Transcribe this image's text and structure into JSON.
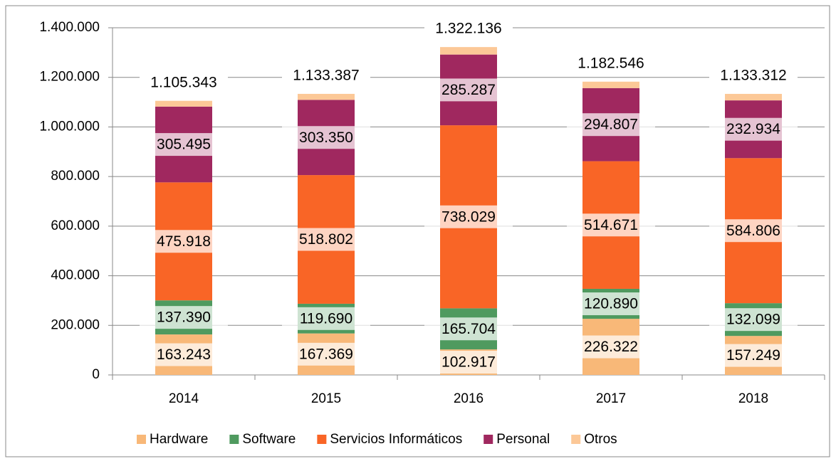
{
  "chart_data": {
    "type": "stacked_bar",
    "categories": [
      "2014",
      "2015",
      "2016",
      "2017",
      "2018"
    ],
    "series": [
      {
        "name": "Hardware",
        "color": "#f8b878",
        "values": [
          163243,
          167369,
          102917,
          226322,
          157249
        ],
        "value_labels": [
          "163.243",
          "167.369",
          "102.917",
          "226.322",
          "157.249"
        ]
      },
      {
        "name": "Software",
        "color": "#4f9a5f",
        "values": [
          137390,
          119690,
          165704,
          120890,
          132099
        ],
        "value_labels": [
          "137.390",
          "119.690",
          "165.704",
          "120.890",
          "132.099"
        ]
      },
      {
        "name": "Servicios Informáticos",
        "color": "#f96526",
        "values": [
          475918,
          518802,
          738029,
          514671,
          584806
        ],
        "value_labels": [
          "475.918",
          "518.802",
          "738.029",
          "514.671",
          "584.806"
        ]
      },
      {
        "name": "Personal",
        "color": "#a0285f",
        "values": [
          305495,
          303350,
          285287,
          294807,
          232934
        ],
        "value_labels": [
          "305.495",
          "303.350",
          "285.287",
          "294.807",
          "232.934"
        ]
      },
      {
        "name": "Otros",
        "color": "#fcc897",
        "values": [
          23297,
          24176,
          30199,
          25856,
          26224
        ]
      }
    ],
    "totals": {
      "values": [
        1105343,
        1133387,
        1322136,
        1182546,
        1133312
      ],
      "value_labels": [
        "1.105.343",
        "1.133.387",
        "1.322.136",
        "1.182.546",
        "1.133.312"
      ]
    },
    "ylim": [
      0,
      1400000
    ],
    "yticks": [
      0,
      {
        "value": 200000,
        "label": "200.000"
      },
      {
        "value": 400000,
        "label": "400.000"
      },
      {
        "value": 600000,
        "label": "600.000"
      },
      {
        "value": 800000,
        "label": "800.000"
      },
      {
        "value": 1000000,
        "label": "1.000.000"
      },
      {
        "value": 1200000,
        "label": "1.200.000"
      },
      {
        "value": 1400000,
        "label": "1.400.000"
      }
    ],
    "grid": true,
    "legend": "bottom"
  }
}
